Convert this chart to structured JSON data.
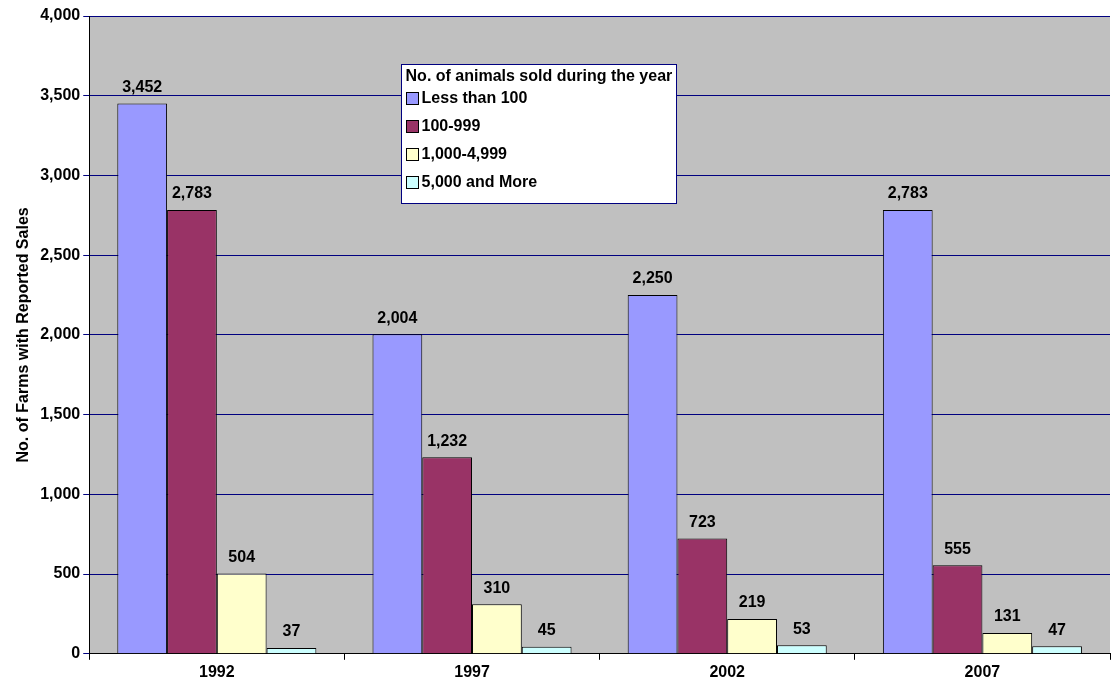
{
  "chart_data": {
    "type": "bar",
    "ylabel": "No. of Farms with Reported Sales",
    "legend_title": "No. of animals sold during the year",
    "categories": [
      "1992",
      "1997",
      "2002",
      "2007"
    ],
    "series": [
      {
        "name": "Less than 100",
        "color": "#9999ff",
        "values": [
          3452,
          2004,
          2250,
          2783
        ],
        "value_labels": [
          "3,452",
          "2,004",
          "2,250",
          "2,783"
        ]
      },
      {
        "name": "100-999",
        "color": "#993366",
        "values": [
          2783,
          1232,
          723,
          555
        ],
        "value_labels": [
          "2,783",
          "1,232",
          "723",
          "555"
        ]
      },
      {
        "name": "1,000-4,999",
        "color": "#ffffcc",
        "values": [
          504,
          310,
          219,
          131
        ],
        "value_labels": [
          "504",
          "310",
          "219",
          "131"
        ]
      },
      {
        "name": "5,000 and More",
        "color": "#ccffff",
        "values": [
          37,
          45,
          53,
          47
        ],
        "value_labels": [
          "37",
          "45",
          "53",
          "47"
        ]
      }
    ],
    "ylim": [
      0,
      4000
    ],
    "yticks": [
      0,
      500,
      {
        "value": 1000,
        "label": "1,000"
      },
      {
        "value": 1500,
        "label": "1,500"
      },
      {
        "value": 2000,
        "label": "2,000"
      },
      {
        "value": 2500,
        "label": "2,500"
      },
      {
        "value": 3000,
        "label": "3,000"
      },
      {
        "value": 3500,
        "label": "3,500"
      },
      {
        "value": 4000,
        "label": "4,000"
      }
    ],
    "grid": "y",
    "legend": "top"
  }
}
